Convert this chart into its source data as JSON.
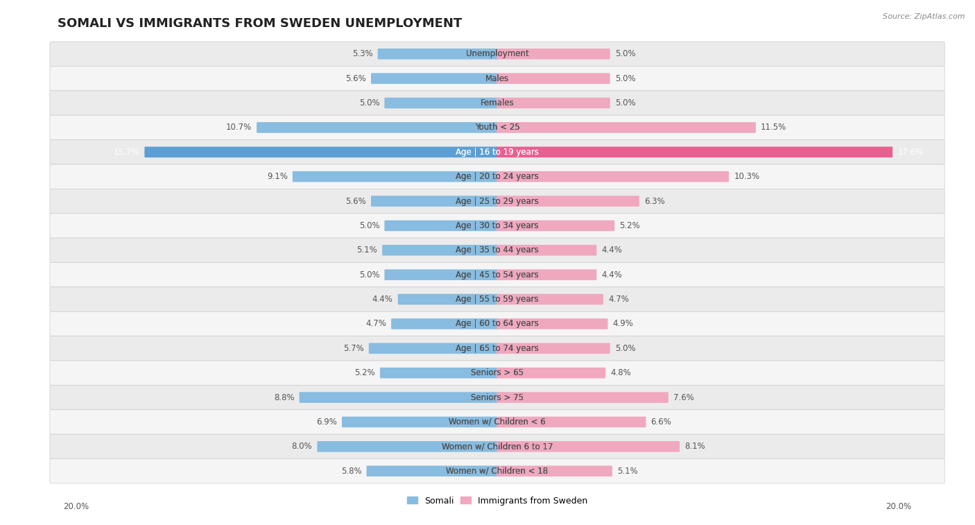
{
  "title": "SOMALI VS IMMIGRANTS FROM SWEDEN UNEMPLOYMENT",
  "source": "Source: ZipAtlas.com",
  "categories": [
    "Unemployment",
    "Males",
    "Females",
    "Youth < 25",
    "Age | 16 to 19 years",
    "Age | 20 to 24 years",
    "Age | 25 to 29 years",
    "Age | 30 to 34 years",
    "Age | 35 to 44 years",
    "Age | 45 to 54 years",
    "Age | 55 to 59 years",
    "Age | 60 to 64 years",
    "Age | 65 to 74 years",
    "Seniors > 65",
    "Seniors > 75",
    "Women w/ Children < 6",
    "Women w/ Children 6 to 17",
    "Women w/ Children < 18"
  ],
  "somali_values": [
    5.3,
    5.6,
    5.0,
    10.7,
    15.7,
    9.1,
    5.6,
    5.0,
    5.1,
    5.0,
    4.4,
    4.7,
    5.7,
    5.2,
    8.8,
    6.9,
    8.0,
    5.8
  ],
  "immigrants_values": [
    5.0,
    5.0,
    5.0,
    11.5,
    17.6,
    10.3,
    6.3,
    5.2,
    4.4,
    4.4,
    4.7,
    4.9,
    5.0,
    4.8,
    7.6,
    6.6,
    8.1,
    5.1
  ],
  "somali_color": "#88bce0",
  "immigrants_color": "#f0a8bf",
  "highlight_somali_color": "#5b9fd4",
  "highlight_immigrants_color": "#e86090",
  "xlim": 20.0,
  "row_light_color": "#f2f2f2",
  "row_dark_color": "#e8e8e8",
  "highlight_row": 4,
  "title_fontsize": 13,
  "label_fontsize": 8.5,
  "value_fontsize": 8.5
}
